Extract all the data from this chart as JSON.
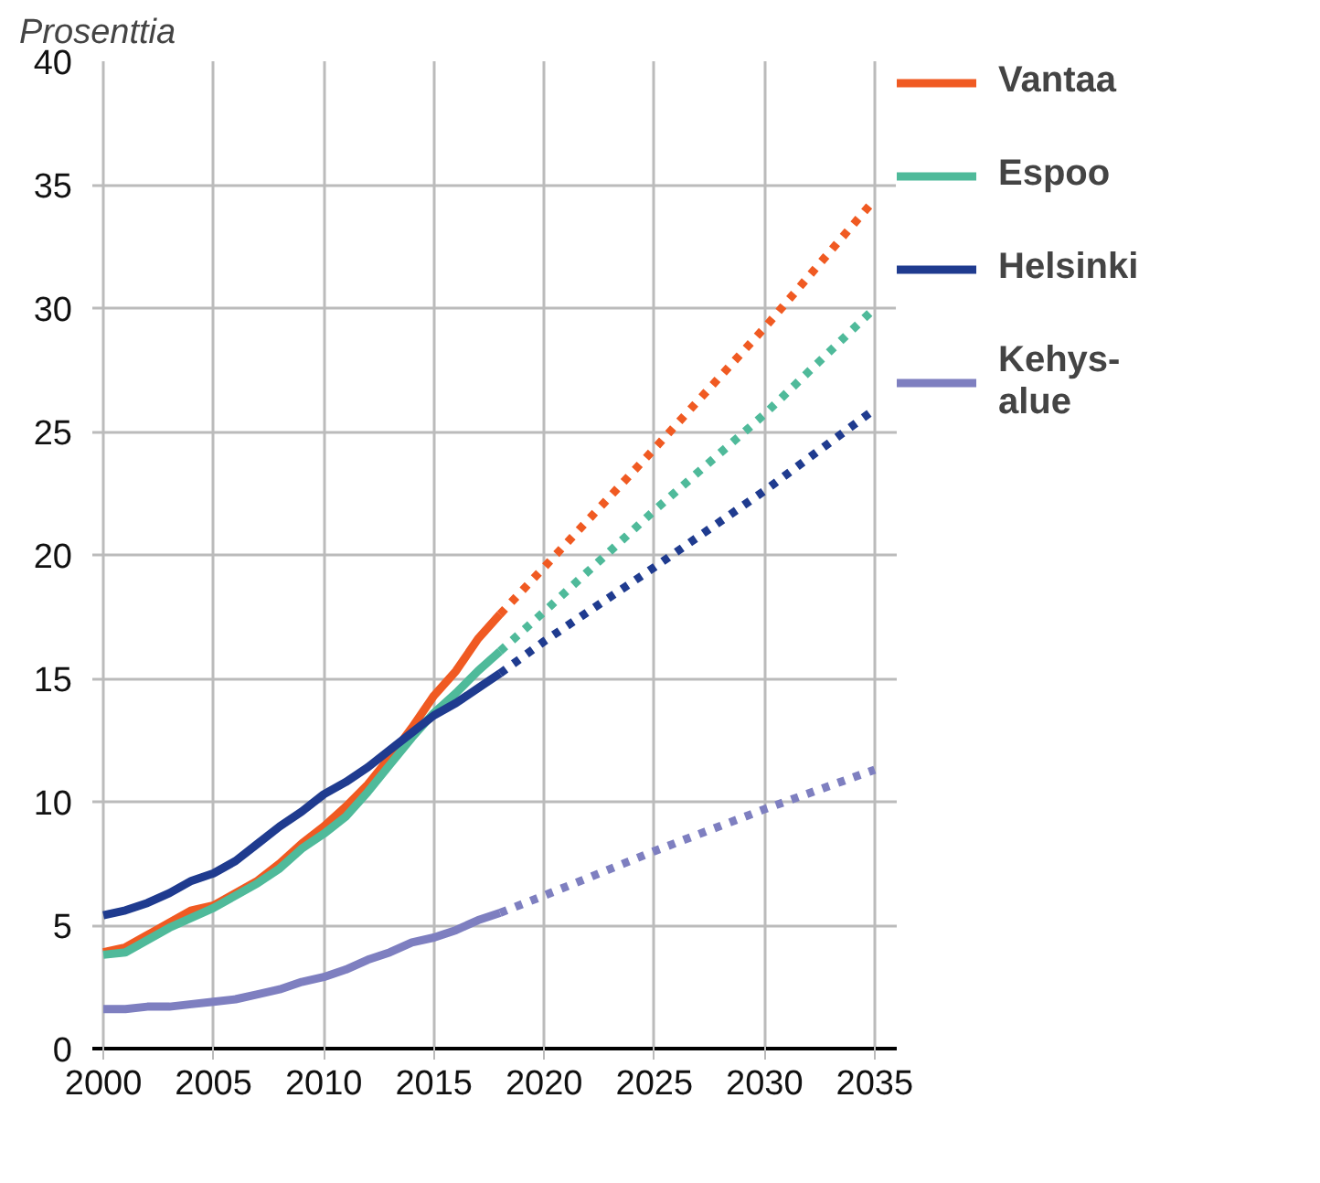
{
  "chart_data": {
    "type": "line",
    "ylabel": "Prosenttia",
    "xlim": [
      1999.5,
      2036
    ],
    "xticks": [
      2000,
      2005,
      2010,
      2015,
      2020,
      2025,
      2030,
      2035
    ],
    "ylim": [
      0,
      40
    ],
    "yticks": [
      0,
      5,
      10,
      15,
      20,
      25,
      30,
      35,
      40
    ],
    "grid": true,
    "legend": "right",
    "series": [
      {
        "name": "Vantaa",
        "color": "#f05a22",
        "line_style": "solid",
        "x": [
          2000,
          2001,
          2002,
          2003,
          2004,
          2005,
          2006,
          2007,
          2008,
          2009,
          2010,
          2011,
          2012,
          2013,
          2014,
          2015,
          2016,
          2017,
          2018
        ],
        "values": [
          3.9,
          4.1,
          4.6,
          5.1,
          5.6,
          5.8,
          6.3,
          6.8,
          7.5,
          8.3,
          9.0,
          9.8,
          10.7,
          11.8,
          13.0,
          14.3,
          15.3,
          16.6,
          17.6
        ]
      },
      {
        "name": "Espoo",
        "color": "#4fba9a",
        "line_style": "solid",
        "x": [
          2000,
          2001,
          2002,
          2003,
          2004,
          2005,
          2006,
          2007,
          2008,
          2009,
          2010,
          2011,
          2012,
          2013,
          2014,
          2015,
          2016,
          2017,
          2018
        ],
        "values": [
          3.8,
          3.9,
          4.4,
          4.9,
          5.3,
          5.7,
          6.2,
          6.7,
          7.3,
          8.1,
          8.7,
          9.4,
          10.4,
          11.5,
          12.6,
          13.6,
          14.4,
          15.3,
          16.1
        ]
      },
      {
        "name": "Helsinki",
        "color": "#1f3b8f",
        "line_style": "solid",
        "x": [
          2000,
          2001,
          2002,
          2003,
          2004,
          2005,
          2006,
          2007,
          2008,
          2009,
          2010,
          2011,
          2012,
          2013,
          2014,
          2015,
          2016,
          2017,
          2018
        ],
        "values": [
          5.4,
          5.6,
          5.9,
          6.3,
          6.8,
          7.1,
          7.6,
          8.3,
          9.0,
          9.6,
          10.3,
          10.8,
          11.4,
          12.1,
          12.8,
          13.5,
          14.0,
          14.6,
          15.2
        ]
      },
      {
        "name": "Kehys-\nalue",
        "color": "#7e7fc0",
        "line_style": "solid",
        "x": [
          2000,
          2001,
          2002,
          2003,
          2004,
          2005,
          2006,
          2007,
          2008,
          2009,
          2010,
          2011,
          2012,
          2013,
          2014,
          2015,
          2016,
          2017,
          2018
        ],
        "values": [
          1.6,
          1.6,
          1.7,
          1.7,
          1.8,
          1.9,
          2.0,
          2.2,
          2.4,
          2.7,
          2.9,
          3.2,
          3.6,
          3.9,
          4.3,
          4.5,
          4.8,
          5.2,
          5.5
        ]
      },
      {
        "color": "#f05a22",
        "line_style": "dotted",
        "x": [
          2018,
          2020,
          2025,
          2030,
          2035
        ],
        "values": [
          17.6,
          19.5,
          24.3,
          29.2,
          34.4
        ]
      },
      {
        "color": "#4fba9a",
        "line_style": "dotted",
        "x": [
          2018,
          2020,
          2025,
          2030,
          2035
        ],
        "values": [
          16.1,
          17.7,
          21.8,
          25.7,
          30.0
        ]
      },
      {
        "color": "#1f3b8f",
        "line_style": "dotted",
        "x": [
          2018,
          2020,
          2025,
          2030,
          2035
        ],
        "values": [
          15.2,
          16.5,
          19.5,
          22.6,
          25.9
        ]
      },
      {
        "color": "#7e7fc0",
        "line_style": "dotted",
        "x": [
          2018,
          2020,
          2025,
          2030,
          2035
        ],
        "values": [
          5.5,
          6.2,
          8.0,
          9.7,
          11.3
        ]
      }
    ]
  }
}
